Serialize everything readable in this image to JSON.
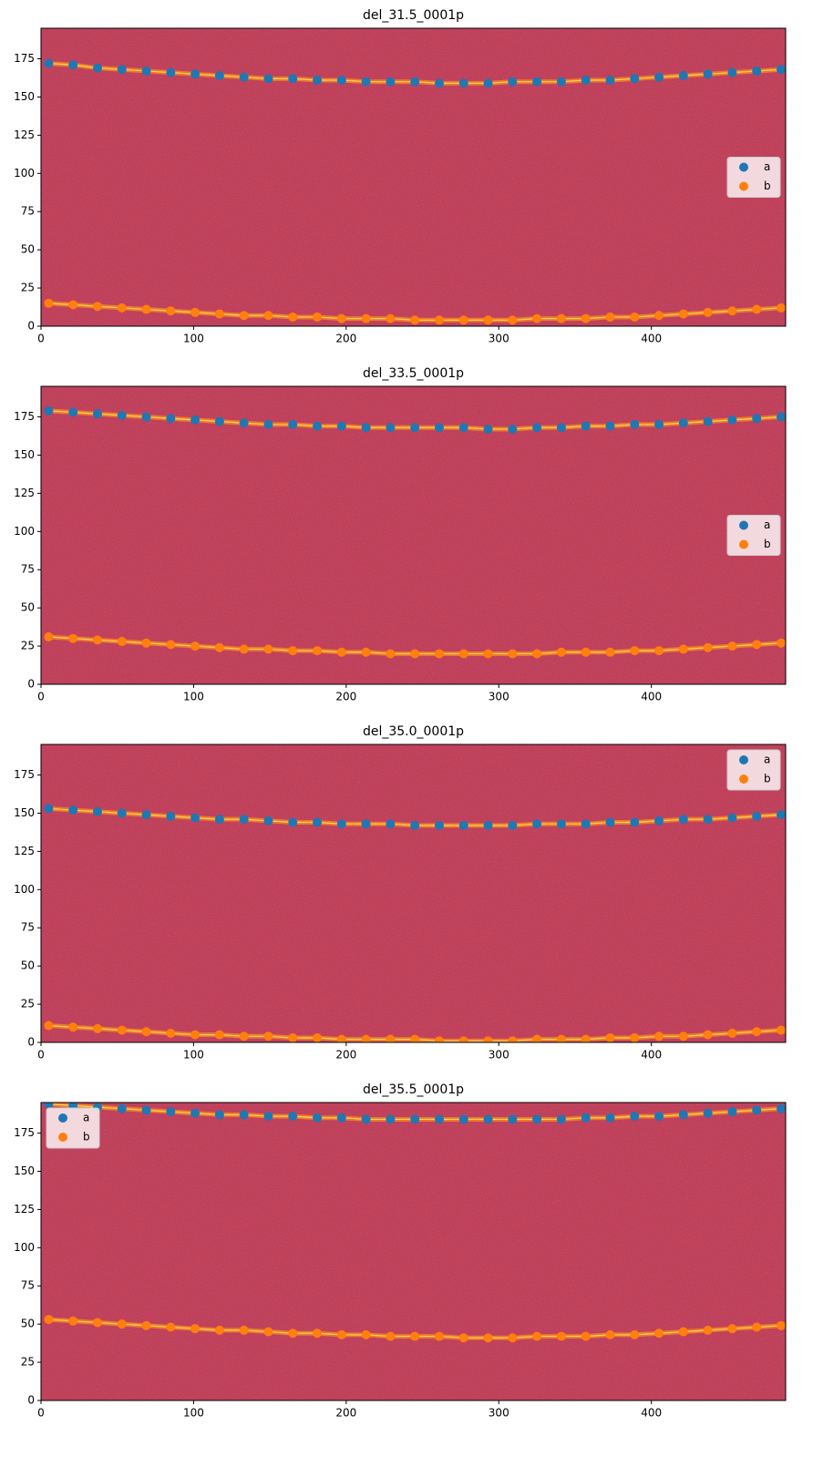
{
  "chart_data": [
    {
      "type": "scatter",
      "title": "del_31.5_0001p",
      "legend_loc": "center right",
      "xlim": [
        0,
        488
      ],
      "ylim": [
        0,
        195
      ],
      "xticks": [
        0,
        100,
        200,
        300,
        400
      ],
      "yticks": [
        0,
        25,
        50,
        75,
        100,
        125,
        150,
        175
      ],
      "x": [
        5,
        21,
        37,
        53,
        69,
        85,
        101,
        117,
        133,
        149,
        165,
        181,
        197,
        213,
        229,
        245,
        261,
        277,
        293,
        309,
        325,
        341,
        357,
        373,
        389,
        405,
        421,
        437,
        453,
        469,
        485
      ],
      "series": [
        {
          "name": "a",
          "color": "#1f77b4",
          "values": [
            172,
            171,
            169,
            168,
            167,
            166,
            165,
            164,
            163,
            162,
            162,
            161,
            161,
            160,
            160,
            160,
            159,
            159,
            159,
            160,
            160,
            160,
            161,
            161,
            162,
            163,
            164,
            165,
            166,
            167,
            168
          ]
        },
        {
          "name": "b",
          "color": "#ff7f0e",
          "values": [
            15,
            14,
            13,
            12,
            11,
            10,
            9,
            8,
            7,
            7,
            6,
            6,
            5,
            5,
            5,
            4,
            4,
            4,
            4,
            4,
            5,
            5,
            5,
            6,
            6,
            7,
            8,
            9,
            10,
            11,
            12
          ]
        }
      ]
    },
    {
      "type": "scatter",
      "title": "del_33.5_0001p",
      "legend_loc": "center right",
      "xlim": [
        0,
        488
      ],
      "ylim": [
        0,
        195
      ],
      "xticks": [
        0,
        100,
        200,
        300,
        400
      ],
      "yticks": [
        0,
        25,
        50,
        75,
        100,
        125,
        150,
        175
      ],
      "x": [
        5,
        21,
        37,
        53,
        69,
        85,
        101,
        117,
        133,
        149,
        165,
        181,
        197,
        213,
        229,
        245,
        261,
        277,
        293,
        309,
        325,
        341,
        357,
        373,
        389,
        405,
        421,
        437,
        453,
        469,
        485
      ],
      "series": [
        {
          "name": "a",
          "color": "#1f77b4",
          "values": [
            179,
            178,
            177,
            176,
            175,
            174,
            173,
            172,
            171,
            170,
            170,
            169,
            169,
            168,
            168,
            168,
            168,
            168,
            167,
            167,
            168,
            168,
            169,
            169,
            170,
            170,
            171,
            172,
            173,
            174,
            175
          ]
        },
        {
          "name": "b",
          "color": "#ff7f0e",
          "values": [
            31,
            30,
            29,
            28,
            27,
            26,
            25,
            24,
            23,
            23,
            22,
            22,
            21,
            21,
            20,
            20,
            20,
            20,
            20,
            20,
            20,
            21,
            21,
            21,
            22,
            22,
            23,
            24,
            25,
            26,
            27
          ]
        }
      ]
    },
    {
      "type": "scatter",
      "title": "del_35.0_0001p",
      "legend_loc": "upper right",
      "xlim": [
        0,
        488
      ],
      "ylim": [
        0,
        195
      ],
      "xticks": [
        0,
        100,
        200,
        300,
        400
      ],
      "yticks": [
        0,
        25,
        50,
        75,
        100,
        125,
        150,
        175
      ],
      "x": [
        5,
        21,
        37,
        53,
        69,
        85,
        101,
        117,
        133,
        149,
        165,
        181,
        197,
        213,
        229,
        245,
        261,
        277,
        293,
        309,
        325,
        341,
        357,
        373,
        389,
        405,
        421,
        437,
        453,
        469,
        485
      ],
      "series": [
        {
          "name": "a",
          "color": "#1f77b4",
          "values": [
            153,
            152,
            151,
            150,
            149,
            148,
            147,
            146,
            146,
            145,
            144,
            144,
            143,
            143,
            143,
            142,
            142,
            142,
            142,
            142,
            143,
            143,
            143,
            144,
            144,
            145,
            146,
            146,
            147,
            148,
            149
          ]
        },
        {
          "name": "b",
          "color": "#ff7f0e",
          "values": [
            11,
            10,
            9,
            8,
            7,
            6,
            5,
            5,
            4,
            4,
            3,
            3,
            2,
            2,
            2,
            2,
            1,
            1,
            1,
            1,
            2,
            2,
            2,
            3,
            3,
            4,
            4,
            5,
            6,
            7,
            8
          ]
        }
      ]
    },
    {
      "type": "scatter",
      "title": "del_35.5_0001p",
      "legend_loc": "upper left",
      "xlim": [
        0,
        488
      ],
      "ylim": [
        0,
        195
      ],
      "xticks": [
        0,
        100,
        200,
        300,
        400
      ],
      "yticks": [
        0,
        25,
        50,
        75,
        100,
        125,
        150,
        175
      ],
      "x": [
        5,
        21,
        37,
        53,
        69,
        85,
        101,
        117,
        133,
        149,
        165,
        181,
        197,
        213,
        229,
        245,
        261,
        277,
        293,
        309,
        325,
        341,
        357,
        373,
        389,
        405,
        421,
        437,
        453,
        469,
        485
      ],
      "series": [
        {
          "name": "a",
          "color": "#1f77b4",
          "values": [
            194,
            193,
            192,
            191,
            190,
            189,
            188,
            187,
            187,
            186,
            186,
            185,
            185,
            184,
            184,
            184,
            184,
            184,
            184,
            184,
            184,
            184,
            185,
            185,
            186,
            186,
            187,
            188,
            189,
            190,
            191
          ]
        },
        {
          "name": "b",
          "color": "#ff7f0e",
          "values": [
            53,
            52,
            51,
            50,
            49,
            48,
            47,
            46,
            46,
            45,
            44,
            44,
            43,
            43,
            42,
            42,
            42,
            41,
            41,
            41,
            42,
            42,
            42,
            43,
            43,
            44,
            45,
            46,
            47,
            48,
            49
          ]
        }
      ]
    }
  ]
}
